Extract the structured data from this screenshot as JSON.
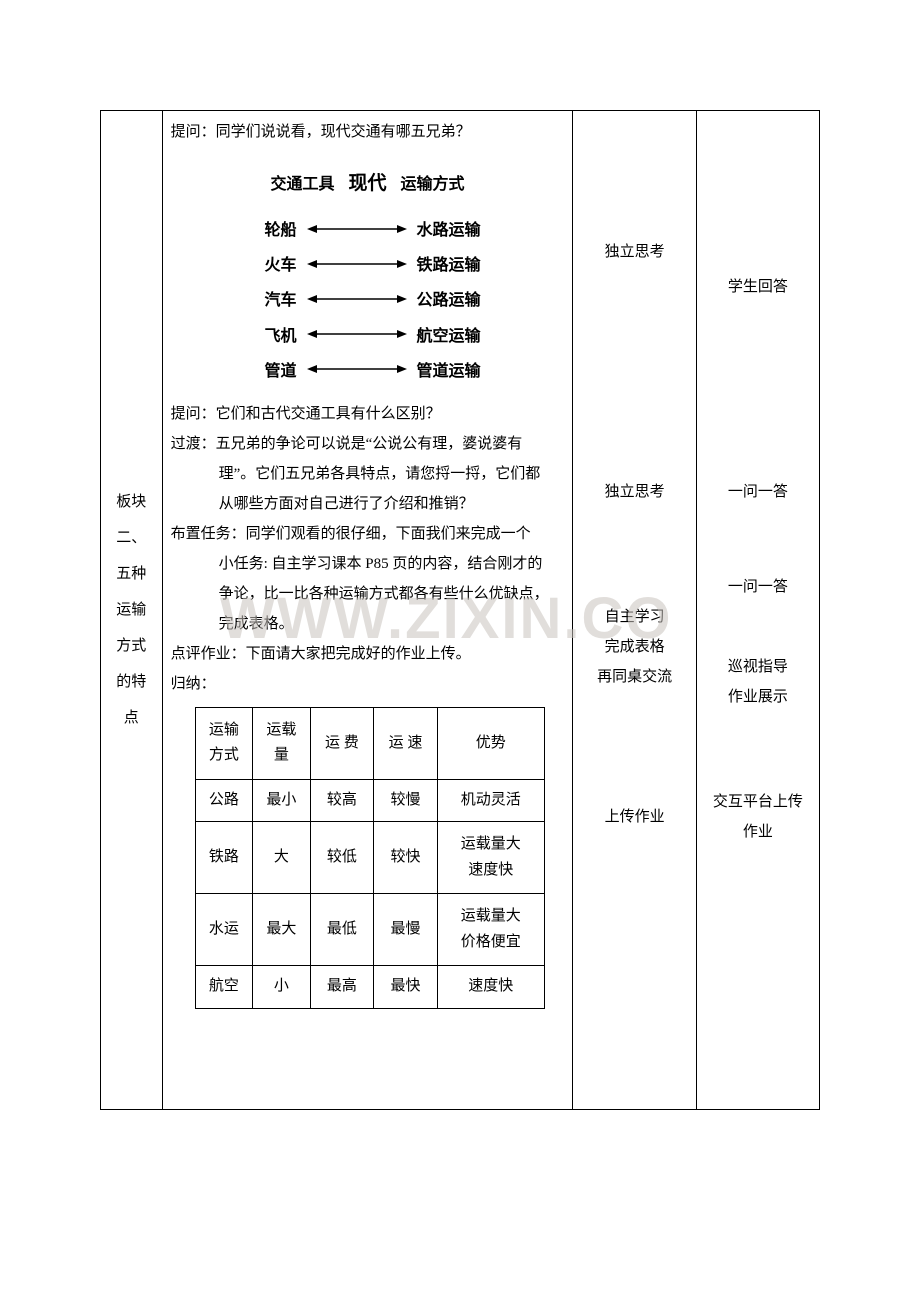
{
  "watermark": "WWW.ZIXIN.CO",
  "leftcol": {
    "line1": "板块",
    "line2": "二、",
    "line3": "五种",
    "line4": "运输",
    "line5": "方式",
    "line6": "的特",
    "line7": "点"
  },
  "main": {
    "q1": "提问：同学们说说看，现代交通有哪五兄弟？",
    "diag_head_left": "交通工具",
    "diag_head_mid": "现代",
    "diag_head_right": "运输方式",
    "rows": [
      {
        "l": "轮船",
        "r": "水路运输"
      },
      {
        "l": "火车",
        "r": "铁路运输"
      },
      {
        "l": "汽车",
        "r": "公路运输"
      },
      {
        "l": "飞机",
        "r": "航空运输"
      },
      {
        "l": "管道",
        "r": "管道运输"
      }
    ],
    "q2": "提问：它们和古代交通工具有什么区别？",
    "trans1": "过渡：五兄弟的争论可以说是“公说公有理，婆说婆有",
    "trans2": "理”。它们五兄弟各具特点，请您捋一捋，它们都",
    "trans3": "从哪些方面对自己进行了介绍和推销？",
    "task1": "布置任务：同学们观看的很仔细，下面我们来完成一个",
    "task2": "小任务: 自主学习课本 P85 页的内容，结合刚才的",
    "task3": "争论，比一比各种运输方式都各有些什么优缺点，",
    "task4": "完成表格。",
    "review": "点评作业：下面请大家把完成好的作业上传。",
    "summary_label": "归纳：",
    "table": {
      "headers": [
        "运输\n方式",
        "运载\n量",
        "运  费",
        "运  速",
        "优势"
      ],
      "rows": [
        [
          "公路",
          "最小",
          "较高",
          "较慢",
          "机动灵活"
        ],
        [
          "铁路",
          "大",
          "较低",
          "较快",
          "运载量大\n速度快"
        ],
        [
          "水运",
          "最大",
          "最低",
          "最慢",
          "运载量大\n价格便宜"
        ],
        [
          "航空",
          "小",
          "最高",
          "最快",
          "速度快"
        ]
      ]
    }
  },
  "activities": {
    "a1": "独立思考",
    "a2": "独立思考",
    "a3": "自主学习",
    "a4": "完成表格",
    "a5": "再同桌交流",
    "a6": "上传作业"
  },
  "teacher": {
    "t1": "学生回答",
    "t2": "一问一答",
    "t3": "一问一答",
    "t4": "巡视指导",
    "t5": "作业展示",
    "t6": "交互平台上传",
    "t7": "作业"
  }
}
